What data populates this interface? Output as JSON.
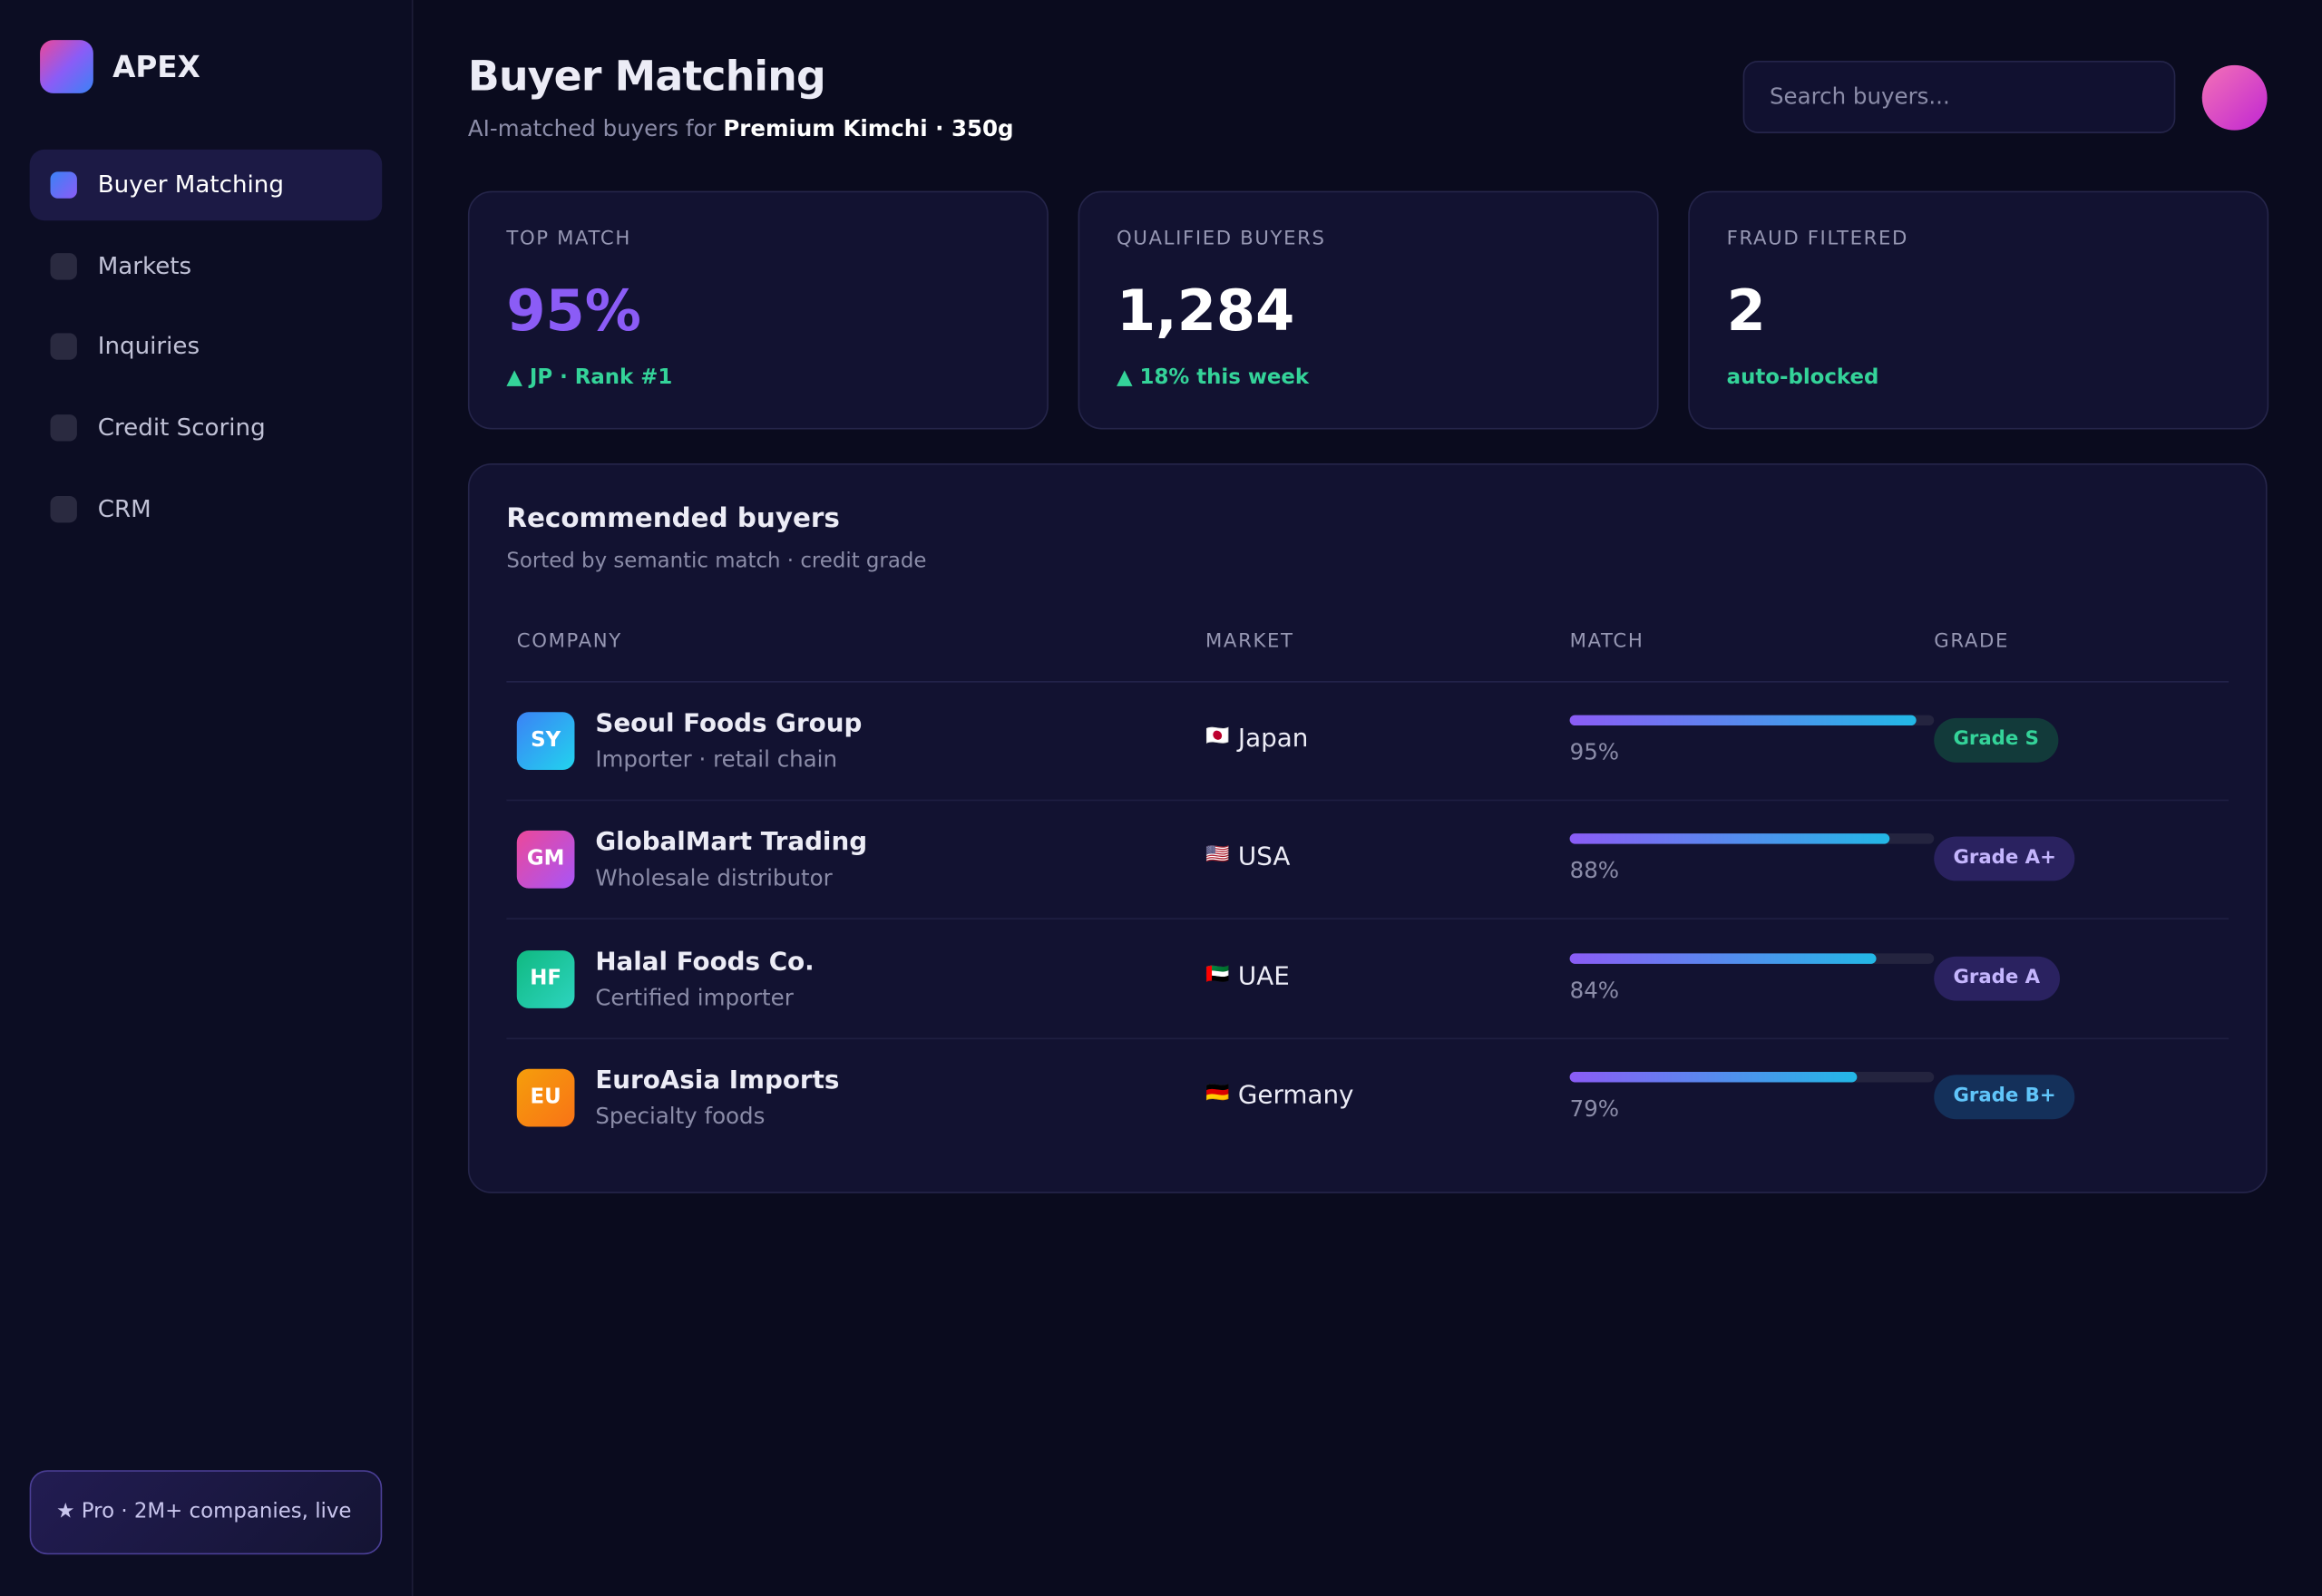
{
  "brand": "APEX",
  "nav": [
    "Buyer Matching",
    "Markets",
    "Inquiries",
    "Credit Scoring",
    "CRM"
  ],
  "promo": "★ Pro · 2M+ companies, live",
  "header": {
    "title": "Buyer Matching",
    "subtitle_prefix": "AI-matched buyers for",
    "product": "Premium Kimchi · 350g",
    "search_placeholder": "Search buyers..."
  },
  "stats": [
    {
      "label": "TOP MATCH",
      "value": "95%",
      "note": "▲ JP · Rank #1"
    },
    {
      "label": "QUALIFIED BUYERS",
      "value": "1,284",
      "note": "▲ 18% this week"
    },
    {
      "label": "FRAUD FILTERED",
      "value": "2",
      "note": "auto-blocked"
    }
  ],
  "table": {
    "title": "Recommended buyers",
    "subtitle": "Sorted by semantic match · credit grade",
    "columns": [
      "COMPANY",
      "MARKET",
      "MATCH",
      "GRADE"
    ],
    "rows": [
      {
        "initials": "SY",
        "company": "Seoul Foods Group",
        "type": "Importer · retail chain",
        "flag": "🇯🇵",
        "market": "Japan",
        "match": 95,
        "match_label": "95%",
        "grade": "Grade S"
      },
      {
        "initials": "GM",
        "company": "GlobalMart Trading",
        "type": "Wholesale distributor",
        "flag": "🇺🇸",
        "market": "USA",
        "match": 88,
        "match_label": "88%",
        "grade": "Grade A+"
      },
      {
        "initials": "HF",
        "company": "Halal Foods Co.",
        "type": "Certified importer",
        "flag": "🇦🇪",
        "market": "UAE",
        "match": 84,
        "match_label": "84%",
        "grade": "Grade A"
      },
      {
        "initials": "EU",
        "company": "EuroAsia Imports",
        "type": "Specialty foods",
        "flag": "🇩🇪",
        "market": "Germany",
        "match": 79,
        "match_label": "79%",
        "grade": "Grade B+"
      }
    ]
  }
}
